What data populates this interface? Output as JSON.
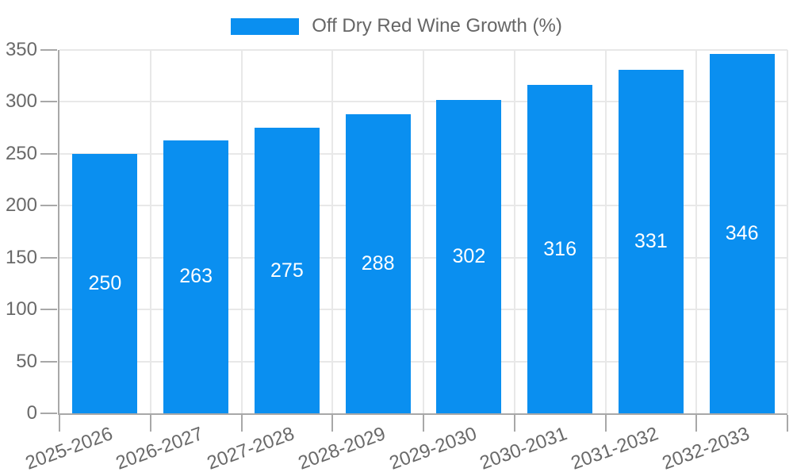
{
  "legend": {
    "label": "Off Dry Red Wine Growth (%)"
  },
  "chart_data": {
    "type": "bar",
    "title": "",
    "xlabel": "",
    "ylabel": "",
    "categories": [
      "2025-2026",
      "2026-2027",
      "2027-2028",
      "2028-2029",
      "2029-2030",
      "2030-2031",
      "2031-2032",
      "2032-2033"
    ],
    "series": [
      {
        "name": "Off Dry Red Wine Growth (%)",
        "values": [
          250,
          263,
          275,
          288,
          302,
          316,
          331,
          346
        ]
      }
    ],
    "value_labels": [
      "250",
      "263",
      "275",
      "288",
      "302",
      "316",
      "331",
      "346"
    ],
    "value_label_position": "inside-center",
    "ylim": [
      0,
      350
    ],
    "yticks": [
      0,
      50,
      100,
      150,
      200,
      250,
      300,
      350
    ],
    "grid": true,
    "legend_position": "top-center",
    "x_tick_label_rotation_deg": -20
  },
  "colors": {
    "bar": "#0a8ff0",
    "axis": "#a8a8a8",
    "grid": "#e8e8e8",
    "tick_text": "#696969",
    "legend_text": "#666666",
    "value_label_text": "#ffffff",
    "background": "#ffffff"
  }
}
